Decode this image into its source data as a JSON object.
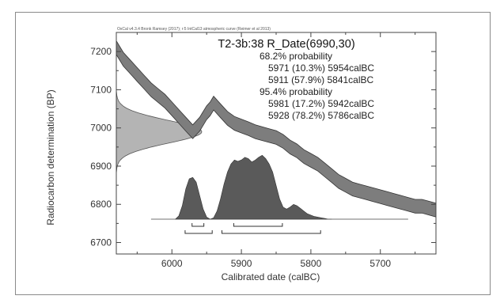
{
  "chart_data": {
    "type": "area",
    "header": "OxCal v4.3.4 Bronk Ramsey (2017); r:5 IntCal13 atmospheric curve (Reimer et al 2013)",
    "title": "T2-3b:38 R_Date(6990,30)",
    "xlabel": "Calibrated date (calBC)",
    "ylabel": "Radiocarbon determination (BP)",
    "x_axis_reversed": true,
    "xlim": [
      6080,
      5620
    ],
    "ylim": [
      6670,
      7250
    ],
    "x_ticks": [
      6000,
      5900,
      5800,
      5700
    ],
    "y_ticks": [
      6700,
      6800,
      6900,
      7000,
      7100,
      7200
    ],
    "probability_text": [
      {
        "text": "68.2% probability",
        "indent": false
      },
      {
        "text": "5971 (10.3%) 5954calBC",
        "indent": true
      },
      {
        "text": "5911 (57.9%) 5841calBC",
        "indent": true
      },
      {
        "text": "95.4% probability",
        "indent": false
      },
      {
        "text": "5981 (17.2%) 5942calBC",
        "indent": true
      },
      {
        "text": "5928 (78.2%) 5786calBC",
        "indent": true
      }
    ],
    "radiocarbon_date": {
      "mean_bp": 6990,
      "error": 30
    },
    "calibration_curve": {
      "x": [
        6080,
        6070,
        6060,
        6050,
        6040,
        6030,
        6020,
        6010,
        6000,
        5990,
        5980,
        5970,
        5960,
        5950,
        5945,
        5940,
        5930,
        5920,
        5910,
        5900,
        5890,
        5880,
        5870,
        5860,
        5850,
        5840,
        5830,
        5820,
        5810,
        5800,
        5790,
        5780,
        5770,
        5760,
        5750,
        5740,
        5730,
        5720,
        5710,
        5700,
        5690,
        5680,
        5670,
        5660,
        5650,
        5640,
        5630,
        5620
      ],
      "y": [
        7210,
        7180,
        7160,
        7140,
        7120,
        7100,
        7085,
        7070,
        7050,
        7030,
        7010,
        6990,
        7010,
        7040,
        7050,
        7065,
        7045,
        7025,
        7012,
        7005,
        6998,
        6990,
        6985,
        6980,
        6975,
        6965,
        6950,
        6940,
        6925,
        6915,
        6905,
        6890,
        6875,
        6860,
        6850,
        6840,
        6835,
        6830,
        6825,
        6820,
        6815,
        6810,
        6805,
        6800,
        6795,
        6795,
        6790,
        6785
      ],
      "band_width": 18
    },
    "posterior": {
      "x": [
        5995,
        5990,
        5985,
        5980,
        5975,
        5970,
        5965,
        5960,
        5955,
        5950,
        5945,
        5940,
        5935,
        5930,
        5925,
        5920,
        5915,
        5910,
        5905,
        5900,
        5895,
        5890,
        5885,
        5880,
        5875,
        5870,
        5865,
        5860,
        5855,
        5850,
        5845,
        5840,
        5835,
        5830,
        5825,
        5820,
        5815,
        5810,
        5805,
        5800,
        5795,
        5790,
        5785,
        5780,
        5775,
        5770
      ],
      "density": [
        0.0,
        0.05,
        0.2,
        0.45,
        0.6,
        0.62,
        0.55,
        0.35,
        0.15,
        0.03,
        0.0,
        0.02,
        0.12,
        0.3,
        0.52,
        0.7,
        0.82,
        0.88,
        0.86,
        0.88,
        0.92,
        0.9,
        0.85,
        0.88,
        0.92,
        0.95,
        0.9,
        0.82,
        0.7,
        0.5,
        0.3,
        0.18,
        0.15,
        0.18,
        0.22,
        0.2,
        0.16,
        0.12,
        0.08,
        0.06,
        0.04,
        0.03,
        0.02,
        0.01,
        0.0,
        0.0
      ]
    },
    "ranges_68": [
      [
        5971,
        5954
      ],
      [
        5911,
        5841
      ]
    ],
    "ranges_95": [
      [
        5981,
        5942
      ],
      [
        5928,
        5786
      ]
    ]
  }
}
